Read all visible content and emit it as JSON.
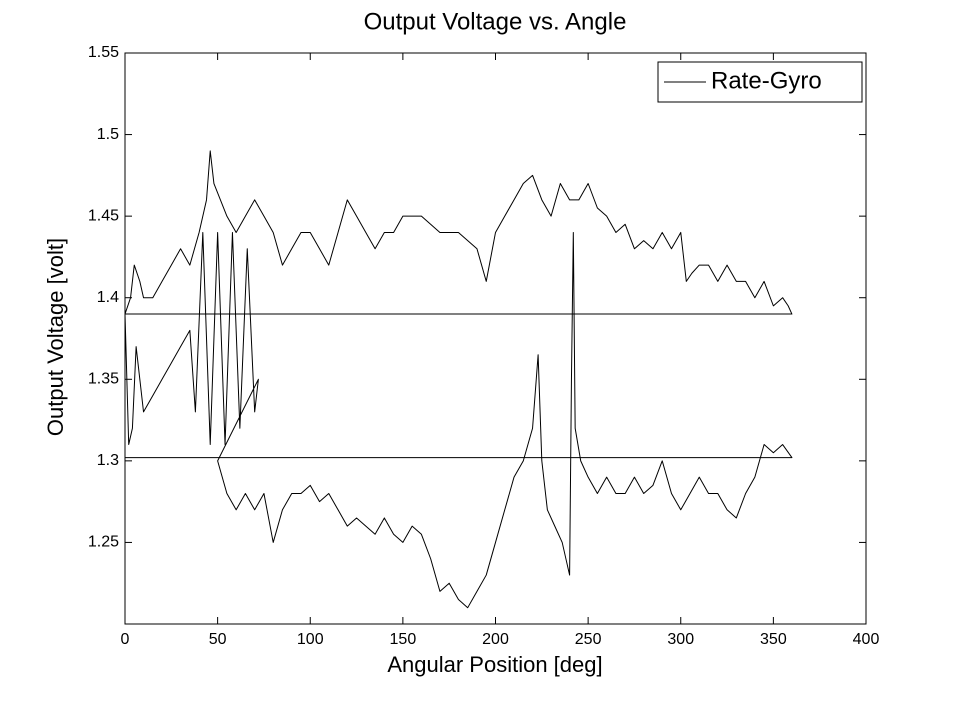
{
  "chart_data": {
    "type": "line",
    "title": "Output Voltage vs. Angle",
    "x_label": "Angular Position [deg]",
    "y_label": "Output Voltage [volt]",
    "xlim": [
      0,
      400
    ],
    "ylim": [
      1.2,
      1.55
    ],
    "xticks": [
      0,
      50,
      100,
      150,
      200,
      250,
      300,
      350,
      400
    ],
    "yticks": [
      1.25,
      1.3,
      1.35,
      1.4,
      1.45,
      1.5,
      1.55
    ],
    "grid": false,
    "legend_position": "upper right",
    "series": [
      {
        "name": "Rate-Gyro",
        "color": "#000000",
        "x": [
          0,
          3,
          5,
          8,
          10,
          15,
          20,
          25,
          30,
          35,
          40,
          44,
          46,
          48,
          55,
          60,
          65,
          70,
          75,
          80,
          85,
          90,
          95,
          100,
          105,
          110,
          115,
          120,
          125,
          130,
          135,
          140,
          145,
          150,
          160,
          170,
          180,
          190,
          195,
          200,
          205,
          210,
          215,
          220,
          225,
          230,
          235,
          240,
          245,
          250,
          255,
          260,
          265,
          270,
          275,
          280,
          285,
          290,
          295,
          300,
          303,
          306,
          310,
          315,
          320,
          325,
          330,
          335,
          340,
          345,
          350,
          355,
          358,
          360,
          0,
          1,
          2,
          4,
          6,
          10,
          15,
          20,
          25,
          30,
          35,
          38,
          42,
          46,
          50,
          54,
          58,
          62,
          66,
          70,
          72,
          50,
          55,
          60,
          65,
          70,
          75,
          80,
          85,
          90,
          95,
          100,
          105,
          110,
          115,
          120,
          125,
          130,
          135,
          140,
          145,
          150,
          155,
          160,
          165,
          170,
          175,
          180,
          185,
          190,
          195,
          200,
          205,
          210,
          215,
          220,
          223,
          225,
          228,
          232,
          236,
          240,
          241,
          242,
          243,
          246,
          250,
          255,
          260,
          265,
          270,
          275,
          280,
          285,
          290,
          295,
          300,
          305,
          310,
          315,
          320,
          325,
          330,
          335,
          340,
          345,
          350,
          355,
          360,
          0
        ],
        "values": [
          1.39,
          1.4,
          1.42,
          1.41,
          1.4,
          1.4,
          1.41,
          1.42,
          1.43,
          1.42,
          1.44,
          1.46,
          1.49,
          1.47,
          1.45,
          1.44,
          1.45,
          1.46,
          1.45,
          1.44,
          1.42,
          1.43,
          1.44,
          1.44,
          1.43,
          1.42,
          1.44,
          1.46,
          1.45,
          1.44,
          1.43,
          1.44,
          1.44,
          1.45,
          1.45,
          1.44,
          1.44,
          1.43,
          1.41,
          1.44,
          1.45,
          1.46,
          1.47,
          1.475,
          1.46,
          1.45,
          1.47,
          1.46,
          1.46,
          1.47,
          1.455,
          1.45,
          1.44,
          1.445,
          1.43,
          1.435,
          1.43,
          1.44,
          1.43,
          1.44,
          1.41,
          1.415,
          1.42,
          1.42,
          1.41,
          1.42,
          1.41,
          1.41,
          1.4,
          1.41,
          1.395,
          1.4,
          1.395,
          1.39,
          1.39,
          1.35,
          1.31,
          1.32,
          1.37,
          1.33,
          1.34,
          1.35,
          1.36,
          1.37,
          1.38,
          1.33,
          1.44,
          1.31,
          1.44,
          1.31,
          1.44,
          1.32,
          1.43,
          1.33,
          1.35,
          1.3,
          1.28,
          1.27,
          1.28,
          1.27,
          1.28,
          1.25,
          1.27,
          1.28,
          1.28,
          1.285,
          1.275,
          1.28,
          1.27,
          1.26,
          1.265,
          1.26,
          1.255,
          1.265,
          1.255,
          1.25,
          1.26,
          1.255,
          1.24,
          1.22,
          1.225,
          1.215,
          1.21,
          1.22,
          1.23,
          1.25,
          1.27,
          1.29,
          1.3,
          1.32,
          1.365,
          1.3,
          1.27,
          1.26,
          1.25,
          1.23,
          1.35,
          1.44,
          1.32,
          1.3,
          1.29,
          1.28,
          1.29,
          1.28,
          1.28,
          1.29,
          1.28,
          1.285,
          1.3,
          1.28,
          1.27,
          1.28,
          1.29,
          1.28,
          1.28,
          1.27,
          1.265,
          1.28,
          1.29,
          1.31,
          1.305,
          1.31,
          1.302,
          1.302
        ]
      }
    ]
  }
}
